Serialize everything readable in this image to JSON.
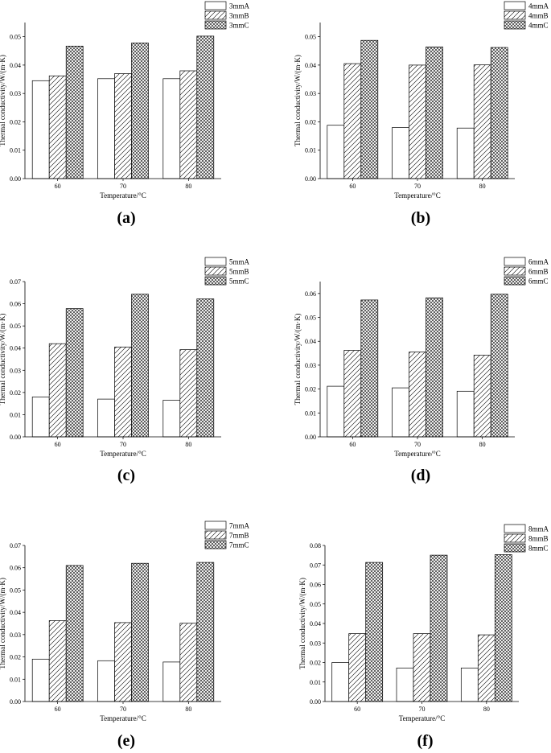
{
  "chart_data": [
    {
      "type": "bar",
      "panel_label": "(a)",
      "categories": [
        "60",
        "70",
        "80"
      ],
      "series": [
        {
          "name": "3mmA",
          "pattern": "plain",
          "values": [
            0.0345,
            0.0352,
            0.0352
          ]
        },
        {
          "name": "3mmB",
          "pattern": "hatch",
          "values": [
            0.0362,
            0.037,
            0.038
          ]
        },
        {
          "name": "3mmC",
          "pattern": "cross",
          "values": [
            0.0467,
            0.0478,
            0.0502
          ]
        }
      ],
      "xlabel": "Temperature/°C",
      "ylabel": "Thermal conductivity/W/(m·K)",
      "ylim": [
        0,
        0.055
      ],
      "yticks": [
        "0.00",
        "0.01",
        "0.02",
        "0.03",
        "0.04",
        "0.05"
      ],
      "legend_position": "top-right",
      "grid": false
    },
    {
      "type": "bar",
      "panel_label": "(b)",
      "categories": [
        "60",
        "70",
        "80"
      ],
      "series": [
        {
          "name": "4mmA",
          "pattern": "plain",
          "values": [
            0.0188,
            0.018,
            0.0178
          ]
        },
        {
          "name": "4mmB",
          "pattern": "hatch",
          "values": [
            0.0405,
            0.04,
            0.0401
          ]
        },
        {
          "name": "4mmC",
          "pattern": "cross",
          "values": [
            0.0487,
            0.0464,
            0.0462
          ]
        }
      ],
      "xlabel": "Temperature/°C",
      "ylabel": "Thermal conductivity/W/(m·K)",
      "ylim": [
        0,
        0.055
      ],
      "yticks": [
        "0.00",
        "0.01",
        "0.02",
        "0.03",
        "0.04",
        "0.05"
      ],
      "legend_position": "top-right",
      "grid": false
    },
    {
      "type": "bar",
      "panel_label": "(c)",
      "categories": [
        "60",
        "70",
        "80"
      ],
      "series": [
        {
          "name": "5mmA",
          "pattern": "plain",
          "values": [
            0.018,
            0.017,
            0.0165
          ]
        },
        {
          "name": "5mmB",
          "pattern": "hatch",
          "values": [
            0.042,
            0.0405,
            0.0393
          ]
        },
        {
          "name": "5mmC",
          "pattern": "cross",
          "values": [
            0.0578,
            0.0643,
            0.0622
          ]
        }
      ],
      "xlabel": "Temperature/°C",
      "ylabel": "Thermal conductivity/W/(m·K)",
      "ylim": [
        0,
        0.07
      ],
      "yticks": [
        "0.00",
        "0.01",
        "0.02",
        "0.03",
        "0.04",
        "0.05",
        "0.06",
        "0.07"
      ],
      "legend_position": "top-right",
      "grid": false
    },
    {
      "type": "bar",
      "panel_label": "(d)",
      "categories": [
        "60",
        "70",
        "80"
      ],
      "series": [
        {
          "name": "6mmA",
          "pattern": "plain",
          "values": [
            0.0212,
            0.0205,
            0.0191
          ]
        },
        {
          "name": "6mmB",
          "pattern": "hatch",
          "values": [
            0.0362,
            0.0355,
            0.0342
          ]
        },
        {
          "name": "6mmC",
          "pattern": "cross",
          "values": [
            0.0573,
            0.0582,
            0.0597
          ]
        }
      ],
      "xlabel": "Temperature/°C",
      "ylabel": "Thermal conductivity/W/(m·K)",
      "ylim": [
        0,
        0.065
      ],
      "yticks": [
        "0.00",
        "0.01",
        "0.02",
        "0.03",
        "0.04",
        "0.05",
        "0.06"
      ],
      "legend_position": "top-right",
      "grid": false
    },
    {
      "type": "bar",
      "panel_label": "(e)",
      "categories": [
        "60",
        "70",
        "80"
      ],
      "series": [
        {
          "name": "7mmA",
          "pattern": "plain",
          "values": [
            0.019,
            0.0183,
            0.0177
          ]
        },
        {
          "name": "7mmB",
          "pattern": "hatch",
          "values": [
            0.0363,
            0.0354,
            0.0351
          ]
        },
        {
          "name": "7mmC",
          "pattern": "cross",
          "values": [
            0.061,
            0.062,
            0.0624
          ]
        }
      ],
      "xlabel": "Temperature/°C",
      "ylabel": "Thermal conductivity/W/(m·K)",
      "ylim": [
        0,
        0.07
      ],
      "yticks": [
        "0.00",
        "0.01",
        "0.02",
        "0.03",
        "0.04",
        "0.05",
        "0.06",
        "0.07"
      ],
      "legend_position": "top-right",
      "grid": false
    },
    {
      "type": "bar",
      "panel_label": "(f)",
      "categories": [
        "60",
        "70",
        "80"
      ],
      "series": [
        {
          "name": "8mmA",
          "pattern": "plain",
          "values": [
            0.02,
            0.0172,
            0.0172
          ]
        },
        {
          "name": "8mmB",
          "pattern": "hatch",
          "values": [
            0.0348,
            0.0348,
            0.0342
          ]
        },
        {
          "name": "8mmC",
          "pattern": "cross",
          "values": [
            0.0713,
            0.075,
            0.0753
          ]
        }
      ],
      "xlabel": "Temperature/°C",
      "ylabel": "Thermal conductivity/W/(m·K)",
      "ylim": [
        0,
        0.08
      ],
      "yticks": [
        "0.00",
        "0.01",
        "0.02",
        "0.03",
        "0.04",
        "0.05",
        "0.06",
        "0.07",
        "0.08"
      ],
      "legend_position": "top-right",
      "grid": false
    }
  ]
}
